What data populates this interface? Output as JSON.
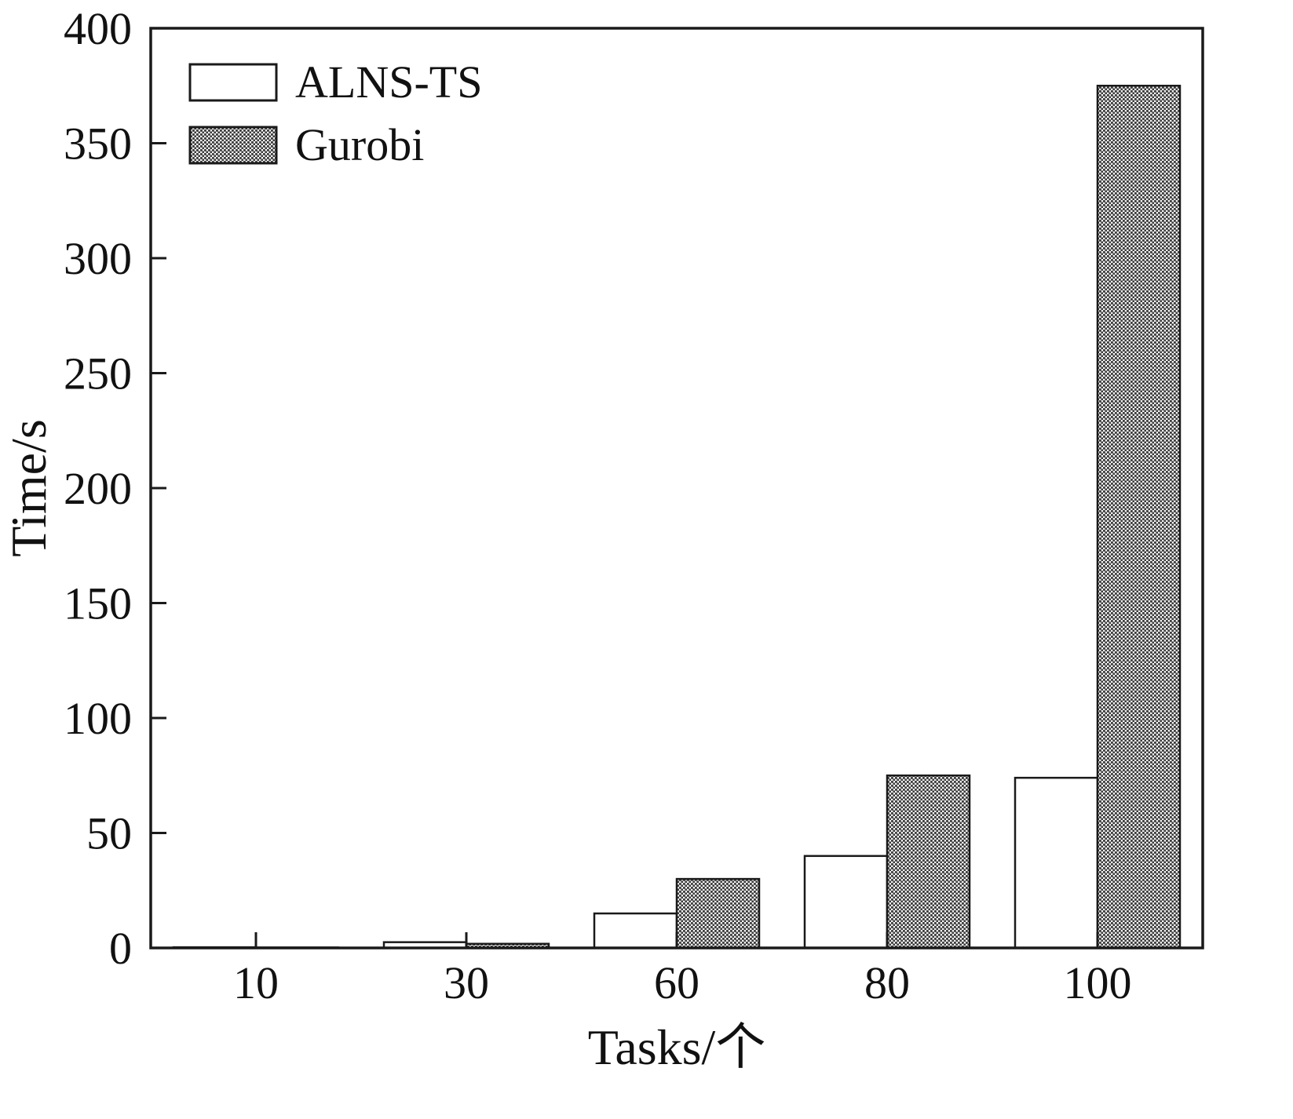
{
  "chart_data": {
    "type": "bar",
    "categories": [
      "10",
      "30",
      "60",
      "80",
      "100"
    ],
    "series": [
      {
        "name": "ALNS-TS",
        "values": [
          0.3,
          2.5,
          15,
          40,
          74
        ],
        "fill_style": "solid-white"
      },
      {
        "name": "Gurobi",
        "values": [
          0.2,
          1.8,
          30,
          75,
          375
        ],
        "fill_style": "halftone-dots"
      }
    ],
    "title": "",
    "xlabel": "Tasks/个",
    "ylabel": "Time/s",
    "ylim": [
      0,
      400
    ],
    "ytick_step": 50,
    "yticks": [
      0,
      50,
      100,
      150,
      200,
      250,
      300,
      350,
      400
    ],
    "grid": false,
    "legend_position": "top-left",
    "axis_color": "#1a1a1a",
    "bar_fill_white": "#ffffff",
    "bar_dot_color": "#3a3a3a"
  }
}
